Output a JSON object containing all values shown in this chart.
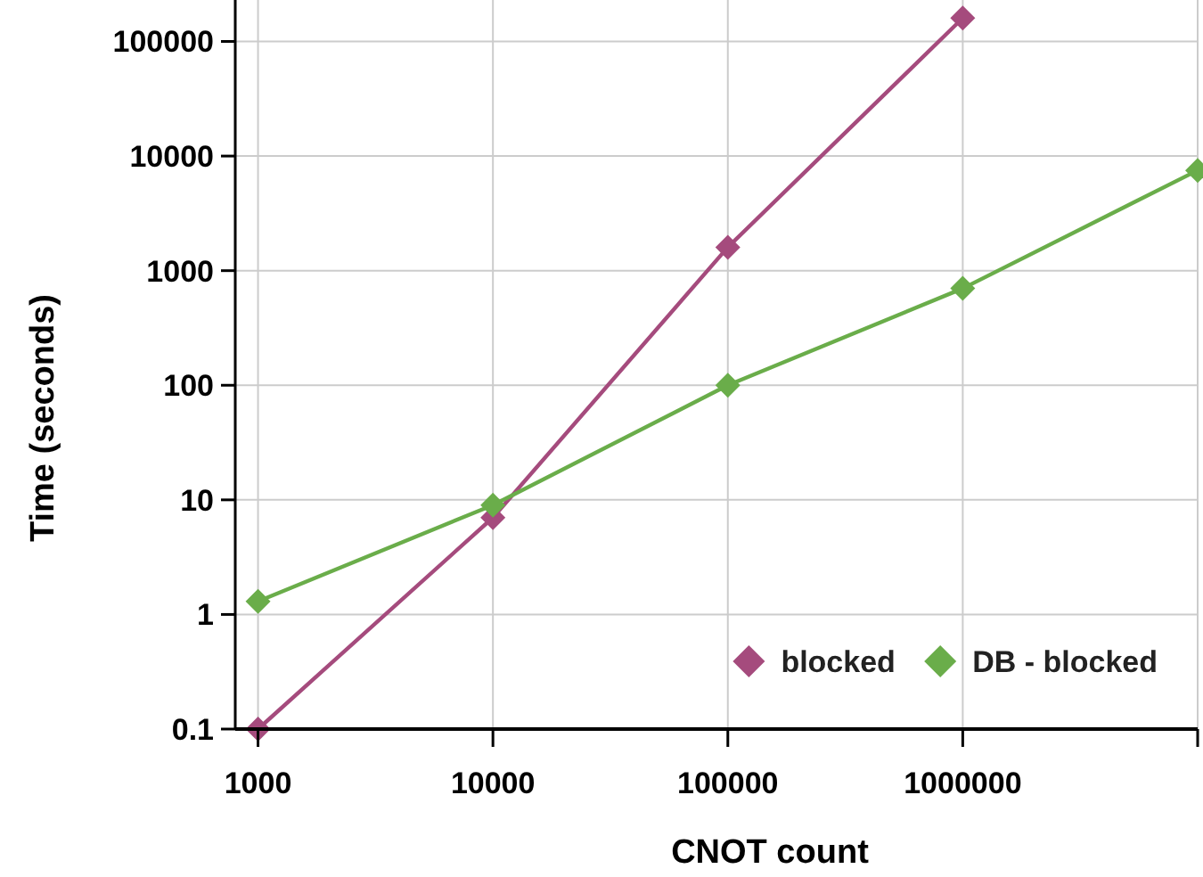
{
  "chart_data": {
    "type": "line",
    "xlabel": "CNOT count",
    "ylabel": "Time (seconds)",
    "x": [
      1000,
      10000,
      100000,
      1000000,
      10000000
    ],
    "series": [
      {
        "name": "blocked",
        "color": "#a54b7d",
        "values": [
          0.1,
          7,
          1600,
          160000,
          null
        ]
      },
      {
        "name": "DB - blocked",
        "color": "#6aad4a",
        "values": [
          1.3,
          9,
          100,
          700,
          7500
        ]
      }
    ],
    "log": "xy",
    "xlim": [
      800,
      10000000
    ],
    "ylim": [
      0.1,
      230000
    ],
    "xticks": [
      1000,
      10000,
      100000,
      1000000,
      {
        "value": 10000000,
        "label": null
      }
    ],
    "yticks": [
      0.1,
      1,
      10,
      100,
      1000,
      10000,
      100000
    ],
    "grid": true,
    "legend": "bottom right",
    "marker": "diamond",
    "line_style": "solid"
  }
}
